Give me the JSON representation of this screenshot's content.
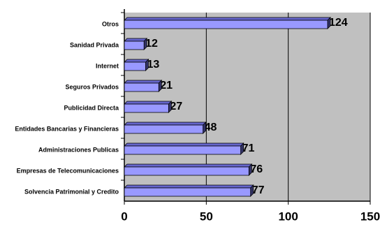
{
  "chart_data": {
    "type": "bar",
    "orientation": "horizontal",
    "categories": [
      "Otros",
      "Sanidad Privada",
      "Internet",
      "Seguros Privados",
      "Publicidad Directa",
      "Entidades Bancarias y Financieras",
      "Administraciones Publicas",
      "Empresas de Telecomunicaciones",
      "Solvencia Patrimonial y Credito"
    ],
    "values": [
      124,
      12,
      13,
      21,
      27,
      48,
      71,
      76,
      77
    ],
    "color": "#9999ff",
    "xlim": [
      0,
      150
    ],
    "xticks": [
      0,
      50,
      100,
      150
    ],
    "grid": true
  }
}
